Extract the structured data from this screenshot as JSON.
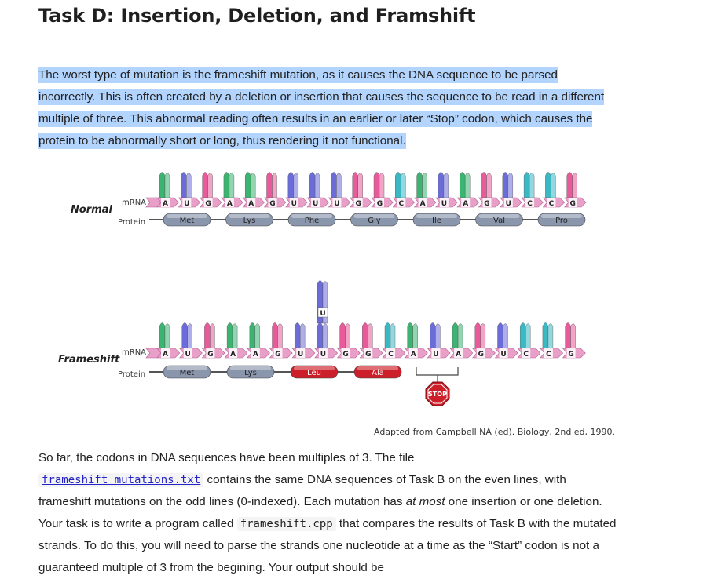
{
  "title": "Task D: Insertion, Deletion, and Framshift",
  "intro": "The worst type of mutation is the frameshift mutation, as it causes the DNA sequence to be parsed incorrectly. This is often created by a deletion or insertion that causes the sequence to be read in a different multiple of three. This abnormal reading often results in an earlier or later “Stop” codon, which causes the protein to be abnormally short or long, thus rendering it not functional.",
  "figure": {
    "normal": {
      "label": "Normal",
      "mrna_label": "mRNA",
      "protein_label": "Protein",
      "bases": [
        "A",
        "U",
        "G",
        "A",
        "A",
        "G",
        "U",
        "U",
        "U",
        "G",
        "G",
        "C",
        "A",
        "U",
        "A",
        "G",
        "U",
        "C",
        "C",
        "G"
      ],
      "proteins": [
        "Met",
        "Lys",
        "Phe",
        "Gly",
        "Ile",
        "Val",
        "Pro"
      ]
    },
    "frameshift": {
      "label": "Frameshift",
      "mrna_label": "mRNA",
      "protein_label": "Protein",
      "bases": [
        "A",
        "U",
        "G",
        "A",
        "A",
        "G",
        "U",
        "U",
        "G",
        "G",
        "C",
        "A",
        "U",
        "A",
        "G",
        "U",
        "C",
        "C",
        "G"
      ],
      "inserted_base": "U",
      "proteins": [
        "Met",
        "Lys",
        "Leu",
        "Ala"
      ],
      "stop_label": "STOP"
    },
    "colors": {
      "A": "#3cb371",
      "U": "#6c6cd8",
      "G": "#e85a9a",
      "C": "#3ab8c4",
      "protein_normal": "#8a96ac",
      "protein_mutant": "#cc1f2a",
      "backbone": "#e9a0c8"
    },
    "credit": "Adapted from Campbell NA (ed). Biology, 2nd ed, 1990."
  },
  "body": {
    "p1_a": "So far, the codons in DNA sequences have been multiples of 3. The file",
    "file_link": "frameshift_mutations.txt",
    "p1_b": " contains the same DNA sequences of Task B on the even lines, with frameshift mutations on the odd lines (0-indexed). Each mutation has ",
    "p1_em": "at most",
    "p1_c": " one insertion or one deletion. Your task is to write a program called ",
    "program": "frameshift.cpp",
    "p1_d": " that compares the results of Task B with the mutated strands. To do this, you will need to parse the strands one nucleotide at a time as the “Start” codon is not a guaranteed multiple of 3 from the begining. Your output should be"
  }
}
